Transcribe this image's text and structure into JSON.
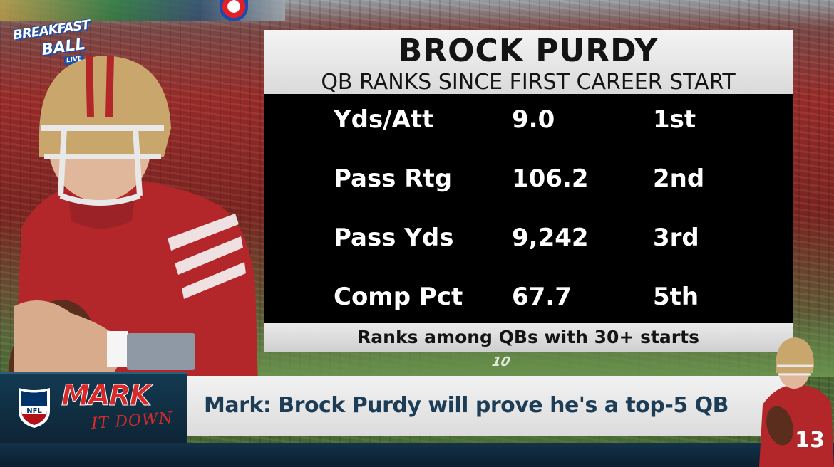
{
  "show": {
    "logo_line1": "BREAKFAST",
    "logo_line2": "BALL",
    "logo_line3": "LIVE"
  },
  "graphic": {
    "title": "BROCK PURDY",
    "subtitle": "QB RANKS SINCE FIRST CAREER START",
    "stats": [
      {
        "label": "Yds/Att",
        "value": "9.0",
        "rank": "1st"
      },
      {
        "label": "Pass Rtg",
        "value": "106.2",
        "rank": "2nd"
      },
      {
        "label": "Pass Yds",
        "value": "9,242",
        "rank": "3rd"
      },
      {
        "label": "Comp Pct",
        "value": "67.7",
        "rank": "5th"
      }
    ],
    "footnote": "Ranks among QBs with 30+ starts"
  },
  "lower_third": {
    "league_logo": "NFL",
    "segment_line1": "MARK",
    "segment_line2": "IT DOWN",
    "headline": "Mark: Brock Purdy will prove he's a top-5 QB"
  },
  "field_marking": "10",
  "jersey_number": "13",
  "colors": {
    "niners_red": "#b3262a",
    "niners_gold": "#c9a66b",
    "panel_black": "#000000",
    "headline_text": "#1d3d57",
    "segment_red": "#d82a2a"
  },
  "icons": [
    "pepsi-logo",
    "show-logo",
    "nfl-shield-icon"
  ]
}
